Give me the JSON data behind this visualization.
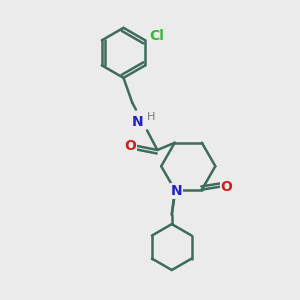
{
  "background_color": "#ebebeb",
  "bond_color": "#3d6b5e",
  "bond_width": 1.8,
  "N_color": "#2020cc",
  "O_color": "#cc2020",
  "Cl_color": "#33bb33",
  "font_size": 10,
  "figsize": [
    3.0,
    3.0
  ],
  "dpi": 100,
  "xlim": [
    0,
    10
  ],
  "ylim": [
    0,
    10
  ]
}
